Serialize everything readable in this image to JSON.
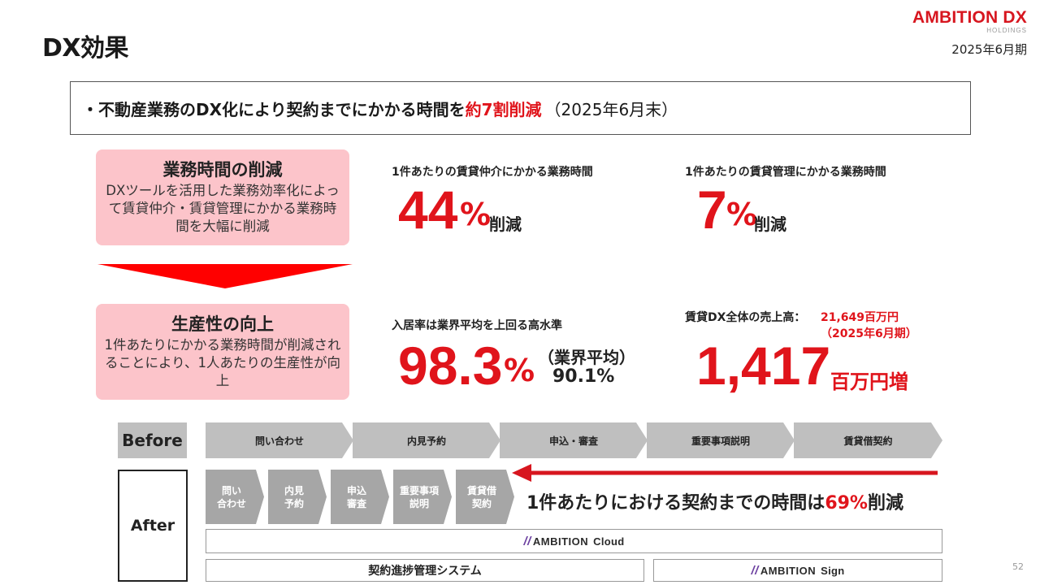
{
  "header": {
    "title": "DX効果",
    "logo_main": "AMBITION DX",
    "logo_sub": "HOLDINGS",
    "period": "2025年6月期"
  },
  "summary": {
    "prefix": "・不動産業務のDX化により契約までにかかる時間を",
    "highlight": "約7割削減",
    "note": "（2025年6月末）"
  },
  "boxes": [
    {
      "title": "業務時間の削減",
      "text": "DXツールを活用した業務効率化によって賃貸仲介・賃貸管理にかかる業務時間を大幅に削減"
    },
    {
      "title": "生産性の向上",
      "text": "1件あたりにかかる業務時間が削減されることにより、1人あたりの生産性が向上"
    }
  ],
  "metrics": {
    "brokerage": {
      "label": "1件あたりの賃貸仲介にかかる業務時間",
      "value": "44",
      "unit": "%",
      "suffix": "削減"
    },
    "management": {
      "label": "1件あたりの賃貸管理にかかる業務時間",
      "value": "7",
      "unit": "%",
      "suffix": "削減"
    },
    "occupancy": {
      "label": "入居率は業界平均を上回る高水準",
      "value": "98.3",
      "unit": "%",
      "avg_label": "（業界平均）",
      "avg_value": "90.1%"
    },
    "sales": {
      "label": "賃貸DX全体の売上高：",
      "total": "21,649百万円",
      "total_period": "（2025年6月期）",
      "value": "1,417",
      "suffix": "百万円増"
    }
  },
  "flow": {
    "before_tag": "Before",
    "after_tag": "After",
    "before_steps": [
      "問い合わせ",
      "内見予約",
      "申込・審査",
      "重要事項説明",
      "賃貸借契約"
    ],
    "after_steps": [
      [
        "問い",
        "合わせ"
      ],
      [
        "内見",
        "予約"
      ],
      [
        "申込",
        "審査"
      ],
      [
        "重要事項",
        "説明"
      ],
      [
        "賃貸借",
        "契約"
      ]
    ],
    "after_result_prefix": "1件あたりにおける契約までの時間は",
    "after_result_pct": "69%",
    "after_result_suffix": "削減"
  },
  "systems": {
    "cloud_brand": "AMBITION",
    "cloud_product": "Cloud",
    "contract_system": "契約進捗管理システム",
    "sign_brand": "AMBITION",
    "sign_product": "Sign"
  },
  "page_number": "52",
  "colors": {
    "accent_red": "#e0141b",
    "pink_box": "#fcc4ca",
    "chevron_gray": "#bfbfbf",
    "chevron_dark": "#a6a6a6"
  }
}
